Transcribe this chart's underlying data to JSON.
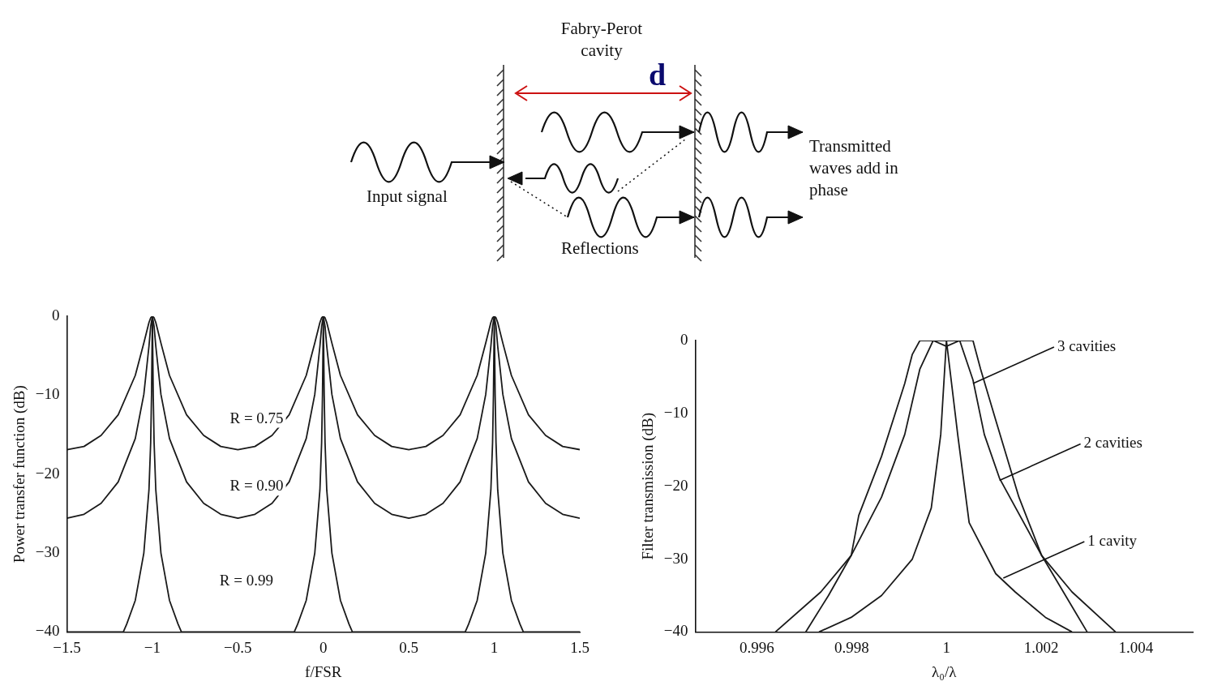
{
  "chart_data": [
    {
      "type": "other",
      "annotations": [
        "Fabry-Perot cavity",
        "d",
        "Input signal",
        "Reflections",
        "Transmitted waves add in phase"
      ]
    },
    {
      "type": "line",
      "xlabel": "f/FSR",
      "ylabel": "Power transfer function (dB)",
      "xlim": [
        -1.5,
        1.5
      ],
      "ylim": [
        -40,
        0
      ],
      "xticks": [
        -1.5,
        -1,
        -0.5,
        0,
        0.5,
        1,
        1.5
      ],
      "yticks": [
        -40,
        -30,
        -20,
        -10,
        0
      ],
      "grid": false,
      "series": [
        {
          "color": "#1a1a1a",
          "x": [
            -1.5,
            -1.4,
            -1.3,
            -1.2,
            -1.1,
            -1.05,
            -1.02,
            -1.01,
            -1,
            -0.99,
            -0.98,
            -0.95,
            -0.9,
            -0.8,
            -0.7,
            -0.6,
            -0.5,
            -0.4,
            -0.3,
            -0.2,
            -0.1,
            -0.05,
            -0.02,
            -0.01,
            0,
            0.01,
            0.02,
            0.05,
            0.1,
            0.2,
            0.3,
            0.4,
            0.5,
            0.6,
            0.7,
            0.8,
            0.9,
            0.95,
            0.98,
            0.99,
            1,
            1.01,
            1.02,
            1.05,
            1.1,
            1.2,
            1.3,
            1.4,
            1.5
          ],
          "values": [
            -16.9,
            -16.5,
            -15.1,
            -12.5,
            -7.5,
            -3.4,
            -0.8,
            -0.2,
            0,
            -0.2,
            -0.8,
            -3.4,
            -7.5,
            -12.5,
            -15.1,
            -16.5,
            -16.9,
            -16.5,
            -15.1,
            -12.5,
            -7.5,
            -3.4,
            -0.8,
            -0.2,
            0,
            -0.2,
            -0.8,
            -3.4,
            -7.5,
            -12.5,
            -15.1,
            -16.5,
            -16.9,
            -16.5,
            -15.1,
            -12.5,
            -7.5,
            -3.4,
            -0.8,
            -0.2,
            0,
            -0.2,
            -0.8,
            -3.4,
            -7.5,
            -12.5,
            -15.1,
            -16.5,
            -16.9
          ]
        },
        {
          "color": "#1a1a1a",
          "x": [
            -1.5,
            -1.4,
            -1.3,
            -1.2,
            -1.1,
            -1.05,
            -1.02,
            -1.01,
            -1,
            -0.99,
            -0.98,
            -0.95,
            -0.9,
            -0.8,
            -0.7,
            -0.6,
            -0.5,
            -0.4,
            -0.3,
            -0.2,
            -0.1,
            -0.05,
            -0.02,
            -0.01,
            0,
            0.01,
            0.02,
            0.05,
            0.1,
            0.2,
            0.3,
            0.4,
            0.5,
            0.6,
            0.7,
            0.8,
            0.9,
            0.95,
            0.98,
            0.99,
            1,
            1.01,
            1.02,
            1.05,
            1.1,
            1.2,
            1.3,
            1.4,
            1.5
          ],
          "values": [
            -25.6,
            -25.1,
            -23.7,
            -21,
            -15.5,
            -9.9,
            -3.8,
            -1.3,
            0,
            -1.3,
            -3.8,
            -9.9,
            -15.5,
            -21,
            -23.7,
            -25.1,
            -25.6,
            -25.1,
            -23.7,
            -21,
            -15.5,
            -9.9,
            -3.8,
            -1.3,
            0,
            -1.3,
            -3.8,
            -9.9,
            -15.5,
            -21,
            -23.7,
            -25.1,
            -25.6,
            -25.1,
            -23.7,
            -21,
            -15.5,
            -9.9,
            -3.8,
            -1.3,
            0,
            -1.3,
            -3.8,
            -9.9,
            -15.5,
            -21,
            -23.7,
            -25.1,
            -25.6
          ]
        },
        {
          "color": "#1a1a1a",
          "x": [
            -1.5,
            -1.17,
            -1.15,
            -1.1,
            -1.05,
            -1.02,
            -1.01,
            -1.005,
            -1,
            -0.995,
            -0.99,
            -0.98,
            -0.95,
            -0.9,
            -0.85,
            -0.83,
            -0.17,
            -0.15,
            -0.1,
            -0.05,
            -0.02,
            -0.01,
            -0.005,
            0,
            0.005,
            0.01,
            0.02,
            0.05,
            0.1,
            0.15,
            0.17,
            0.83,
            0.85,
            0.9,
            0.95,
            0.98,
            0.99,
            0.995,
            1,
            1.005,
            1.01,
            1.02,
            1.05,
            1.1,
            1.15,
            1.17,
            1.5
          ],
          "values": [
            -40,
            -40,
            -39,
            -36,
            -30,
            -22,
            -16,
            -10,
            0,
            -10,
            -16,
            -22,
            -30,
            -36,
            -39,
            -40,
            -40,
            -39,
            -36,
            -30,
            -22,
            -16,
            -10,
            0,
            -10,
            -16,
            -22,
            -30,
            -36,
            -39,
            -40,
            -40,
            -39,
            -36,
            -30,
            -22,
            -16,
            -10,
            0,
            -10,
            -16,
            -22,
            -30,
            -36,
            -39,
            -40,
            -40
          ]
        }
      ],
      "annotations": [
        "R = 0.75",
        "R = 0.90",
        "R = 0.99"
      ]
    },
    {
      "type": "line",
      "xlabel": "λ₀/λ",
      "ylabel": "Filter transmission (dB)",
      "xlim": [
        0.9947,
        1.0052
      ],
      "ylim": [
        -40,
        0
      ],
      "xticks": [
        0.996,
        0.998,
        1,
        1.002,
        1.004
      ],
      "yticks": [
        -40,
        -30,
        -20,
        -10,
        0
      ],
      "grid": false,
      "series": [
        {
          "color": "#1a1a1a",
          "x": [
            0.99731,
            0.99799,
            0.99863,
            0.99928,
            0.99968,
            0.99988,
            1,
            1.00024,
            1.00048,
            1.00104,
            1.00145,
            1.00209,
            1.00265
          ],
          "values": [
            -40,
            -38,
            -35,
            -30,
            -23,
            -12.9,
            0,
            -13,
            -25,
            -32,
            -34.5,
            -38,
            -40
          ]
        },
        {
          "color": "#1a1a1a",
          "x": [
            0.99703,
            0.99751,
            0.99799,
            0.99863,
            0.99912,
            0.99944,
            0.99972,
            1,
            1.00028,
            1.00056,
            1.0008,
            1.00112,
            1.00201,
            1.00297
          ],
          "values": [
            -40,
            -35,
            -29.5,
            -21.5,
            -12.9,
            -3.9,
            0,
            -0.8,
            0,
            -5.4,
            -12.9,
            -18.9,
            -29.5,
            -40
          ]
        },
        {
          "color": "#1a1a1a",
          "x": [
            0.99639,
            0.99735,
            0.99799,
            0.99815,
            0.99863,
            0.99912,
            0.99928,
            0.99944,
            1,
            1.00056,
            1.00072,
            1.00104,
            1.00153,
            1.00201,
            1.00265,
            1.00357
          ],
          "values": [
            -40,
            -34.5,
            -29.5,
            -24,
            -15.9,
            -5.9,
            -1.9,
            0,
            0,
            0,
            -3.9,
            -10.9,
            -21.5,
            -29.5,
            -34.5,
            -40
          ]
        }
      ],
      "annotations": [
        {
          "text": "3 cavities",
          "x": 1.00056,
          "y": -5.9
        },
        {
          "text": "2 cavities",
          "x": 1.00112,
          "y": -19.2
        },
        {
          "text": "1 cavity",
          "x": 1.0012,
          "y": -32.6
        }
      ]
    }
  ]
}
